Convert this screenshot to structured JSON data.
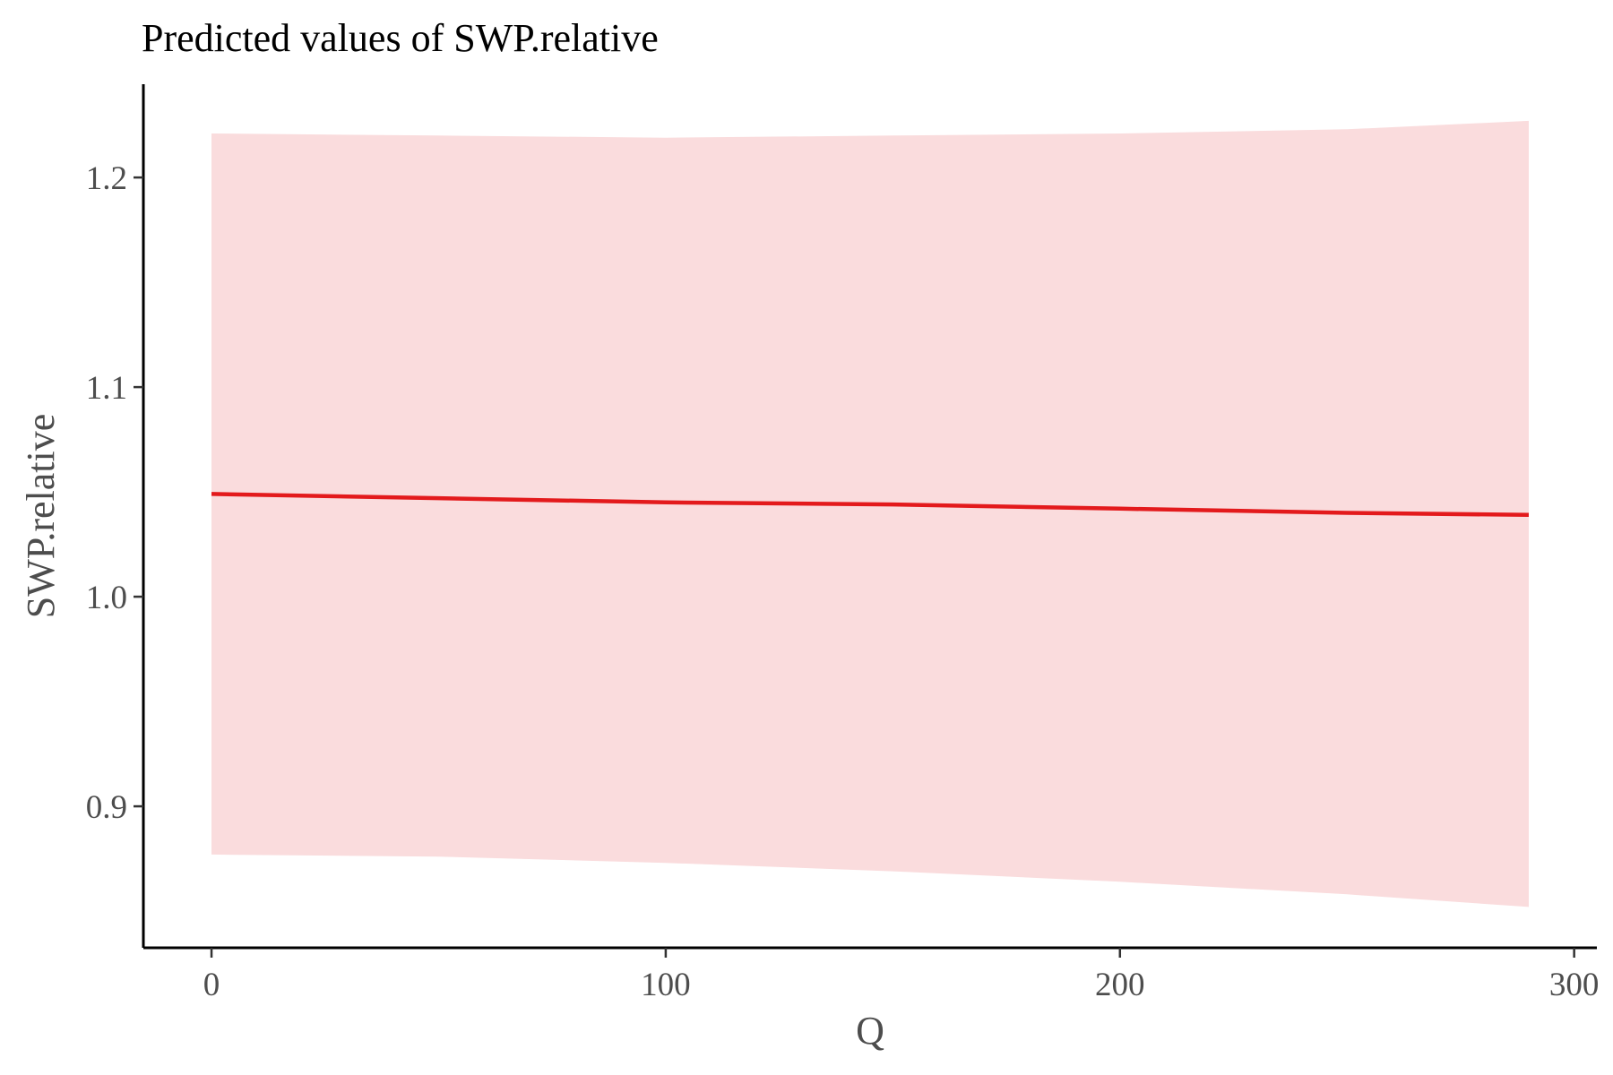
{
  "chart_data": {
    "type": "line",
    "title": "Predicted values of SWP.relative",
    "xlabel": "Q",
    "ylabel": "SWP.relative",
    "xlim": [
      -15,
      305
    ],
    "ylim": [
      0.8325,
      1.2445
    ],
    "xticks": [
      0,
      100,
      200,
      300
    ],
    "xtick_labels": [
      "0",
      "100",
      "200",
      "300"
    ],
    "yticks": [
      0.9,
      1.0,
      1.1,
      1.2
    ],
    "ytick_labels": [
      "0.9",
      "1.0",
      "1.1",
      "1.2"
    ],
    "grid": false,
    "legend": "none",
    "series": [
      {
        "x": [
          0,
          50,
          100,
          150,
          200,
          250,
          290
        ],
        "y": [
          1.049,
          1.047,
          1.045,
          1.044,
          1.042,
          1.04,
          1.039
        ],
        "ci_low": [
          0.877,
          0.876,
          0.873,
          0.869,
          0.864,
          0.858,
          0.852
        ],
        "ci_high": [
          1.221,
          1.22,
          1.219,
          1.22,
          1.221,
          1.223,
          1.227
        ],
        "color": "#e31a1c",
        "band_color": "#fadcdd"
      }
    ]
  }
}
